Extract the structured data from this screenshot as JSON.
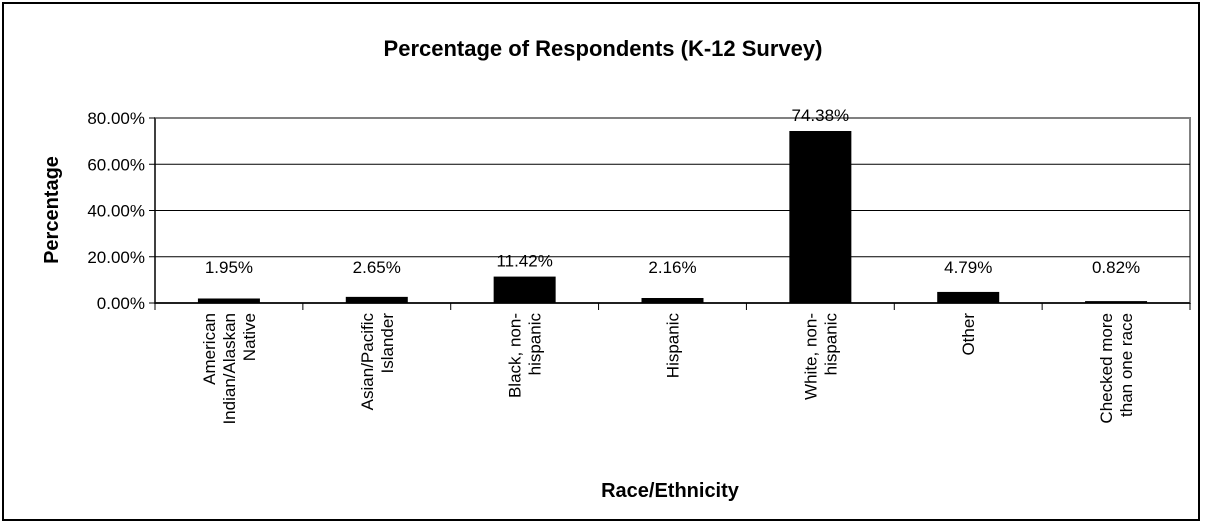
{
  "chart_data": {
    "type": "bar",
    "title": "Percentage of Respondents (K-12 Survey)",
    "xlabel": "Race/Ethnicity",
    "ylabel": "Percentage",
    "categories": [
      [
        "American",
        "Indian/Alaskan",
        "Native"
      ],
      [
        "Asian/Pacific",
        "Islander"
      ],
      [
        "Black, non-",
        "hispanic"
      ],
      [
        "Hispanic"
      ],
      [
        "White, non-",
        "hispanic"
      ],
      [
        "Other"
      ],
      [
        "Checked more",
        "than one race"
      ]
    ],
    "values": [
      1.95,
      2.65,
      11.42,
      2.16,
      74.38,
      4.79,
      0.82
    ],
    "data_labels": [
      "1.95%",
      "2.65%",
      "11.42%",
      "2.16%",
      "74.38%",
      "4.79%",
      "0.82%"
    ],
    "ylim": [
      0,
      80
    ],
    "yticks": [
      0,
      20,
      40,
      60,
      80
    ],
    "ytick_labels": [
      "0.00%",
      "20.00%",
      "40.00%",
      "60.00%",
      "80.00%"
    ],
    "grid": true,
    "legend": "none",
    "bar_color": "#000000"
  }
}
